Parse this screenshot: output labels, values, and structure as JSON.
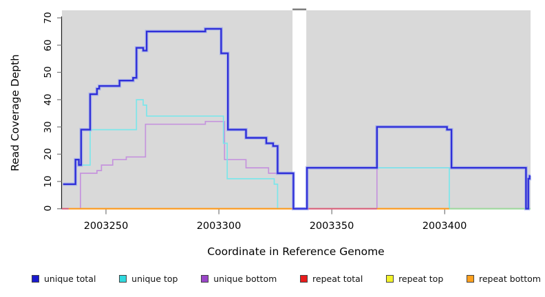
{
  "figure": {
    "bg": "#ffffff"
  },
  "y_axis": {
    "title": "Read Coverage Depth",
    "tick_labels": [
      "0",
      "10",
      "20",
      "30",
      "40",
      "50",
      "60",
      "70"
    ],
    "tick_color": "#8a8a8a",
    "axis_color": "#1a1a1a"
  },
  "x_axis": {
    "title": "Coordinate in Reference Genome",
    "tick_labels": [
      "2003250",
      "2003300",
      "2003350",
      "2003400"
    ]
  },
  "legend": [
    {
      "label": "unique total",
      "color": "#1a1ace"
    },
    {
      "label": "unique top",
      "color": "#30d9de"
    },
    {
      "label": "unique bottom",
      "color": "#9a46c8"
    },
    {
      "label": "repeat total",
      "color": "#e81c1c"
    },
    {
      "label": "repeat top",
      "color": "#f2f22a"
    },
    {
      "label": "repeat bottom",
      "color": "#ffa01e"
    }
  ],
  "chart_data": {
    "type": "line",
    "step": true,
    "title": "",
    "xlabel": "Coordinate in Reference Genome",
    "ylabel": "Read Coverage Depth",
    "xlim": [
      2003230.5,
      2003438
    ],
    "ylim": [
      0,
      70
    ],
    "y_ticks": [
      0,
      10,
      20,
      30,
      40,
      50,
      60,
      70
    ],
    "x_ticks": [
      2003250,
      2003300,
      2003350,
      2003400
    ],
    "plot_bg": "#d9d9d9",
    "no_data_band": {
      "from": 2003332.6,
      "to": 2003338.7
    },
    "x_end": 2003438,
    "legend_position": "bottom",
    "grid": false,
    "series": [
      {
        "name": "repeat total",
        "color": "#e02020",
        "width": 1.4,
        "steps": [
          [
            2003230.5,
            0
          ]
        ]
      },
      {
        "name": "repeat top",
        "color": "#f2f22a",
        "width": 1.4,
        "steps": [
          [
            2003230.5,
            0
          ]
        ]
      },
      {
        "name": "repeat bottom",
        "color": "#ff9715",
        "width": 1.8,
        "steps": [
          [
            2003230.5,
            0
          ]
        ]
      },
      {
        "name": "unique bottom",
        "color": "#c593dd",
        "width": 1.7,
        "steps": [
          [
            2003231,
            0
          ],
          [
            2003238.7,
            13
          ],
          [
            2003246,
            14
          ],
          [
            2003248,
            16
          ],
          [
            2003253,
            18
          ],
          [
            2003259,
            19
          ],
          [
            2003267.5,
            31
          ],
          [
            2003294,
            32
          ],
          [
            2003302.5,
            18
          ],
          [
            2003312,
            15
          ],
          [
            2003322,
            13
          ],
          [
            2003333,
            0
          ],
          [
            2003370,
            15
          ],
          [
            2003436,
            0
          ],
          [
            2003437,
            11
          ],
          [
            2003437.6,
            12
          ]
        ]
      },
      {
        "name": "unique top",
        "color": "#7ce6ea",
        "width": 1.7,
        "steps": [
          [
            2003239.5,
            16
          ],
          [
            2003243,
            29
          ],
          [
            2003263.5,
            40
          ],
          [
            2003266.5,
            38
          ],
          [
            2003268,
            34
          ],
          [
            2003302,
            24
          ],
          [
            2003303.7,
            11
          ],
          [
            2003324.5,
            9
          ],
          [
            2003326,
            0
          ],
          [
            2003339,
            15
          ],
          [
            2003402,
            0
          ]
        ]
      },
      {
        "name": "unique total",
        "color": "#2f2fd8",
        "halo": "#93a3f2",
        "width": 2.4,
        "steps": [
          [
            2003231,
            9
          ],
          [
            2003236.5,
            18
          ],
          [
            2003238,
            16
          ],
          [
            2003239,
            29
          ],
          [
            2003243,
            42
          ],
          [
            2003246,
            44
          ],
          [
            2003247,
            45
          ],
          [
            2003256,
            47
          ],
          [
            2003262,
            48
          ],
          [
            2003263.5,
            59
          ],
          [
            2003266.5,
            58
          ],
          [
            2003268,
            65
          ],
          [
            2003294,
            66
          ],
          [
            2003301,
            57
          ],
          [
            2003304,
            29
          ],
          [
            2003312,
            26
          ],
          [
            2003321,
            24
          ],
          [
            2003324,
            23
          ],
          [
            2003326,
            13
          ],
          [
            2003333,
            0
          ],
          [
            2003339,
            15
          ],
          [
            2003370,
            30
          ],
          [
            2003401,
            29
          ],
          [
            2003403,
            15
          ],
          [
            2003436,
            0
          ],
          [
            2003437,
            11
          ],
          [
            2003437.6,
            12
          ]
        ]
      }
    ],
    "zero_line_segments": [
      {
        "color": "#d85a76",
        "from": 2003230.5,
        "to": 2003233.5
      },
      {
        "color": "#ff9715",
        "from": 2003233.5,
        "to": 2003332.6
      },
      {
        "color": "#d85a76",
        "from": 2003332.6,
        "to": 2003370
      },
      {
        "color": "#ff9715",
        "from": 2003370,
        "to": 2003402
      },
      {
        "color": "#9cd89c",
        "from": 2003402,
        "to": 2003438
      }
    ]
  }
}
